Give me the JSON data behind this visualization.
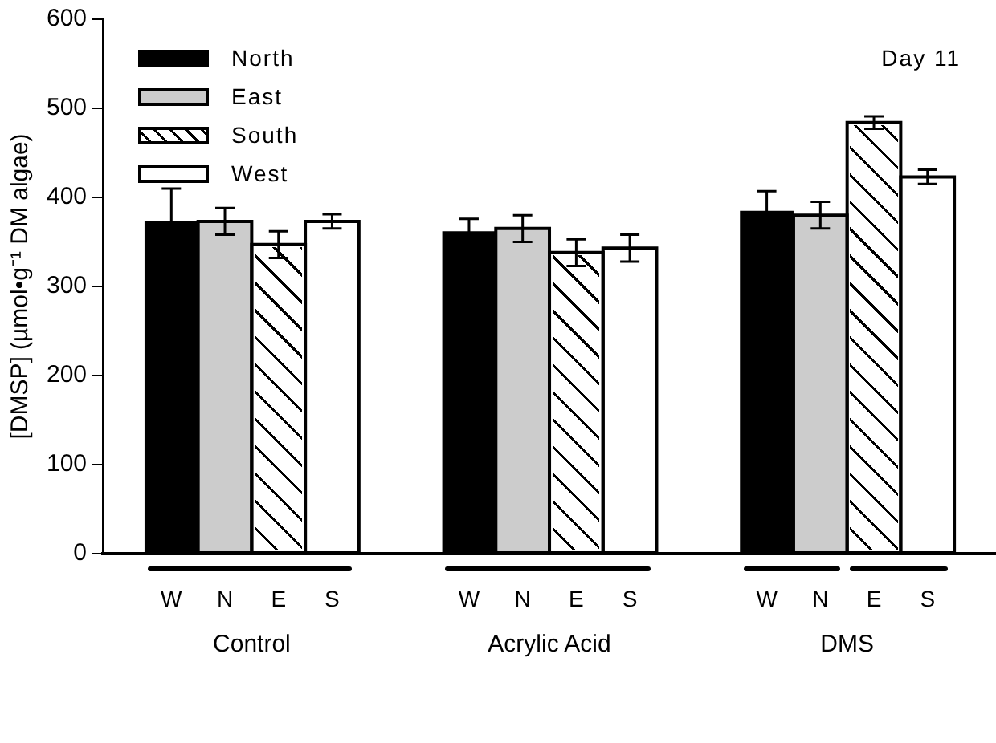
{
  "chart_data": {
    "type": "bar",
    "ylabel": "[DMSP] (µmol•g⁻¹ DM algae)",
    "categories": [
      "Control",
      "Acrylic Acid",
      "DMS"
    ],
    "series": [
      {
        "name": "North",
        "color": "#000000",
        "values": [
          373,
          362,
          385
        ],
        "errors": [
          37,
          14,
          22
        ]
      },
      {
        "name": "East",
        "color": "#cccccc",
        "values": [
          373,
          365,
          380
        ],
        "errors": [
          15,
          15,
          15
        ]
      },
      {
        "name": "South",
        "color": "#ffffff",
        "values": [
          347,
          338,
          484
        ],
        "errors": [
          15,
          15,
          7
        ]
      },
      {
        "name": "West",
        "color": "#ffffff",
        "values": [
          373,
          343,
          423
        ],
        "errors": [
          8,
          15,
          8
        ]
      }
    ],
    "ylim": [
      0,
      600
    ],
    "yticks": [
      0,
      100,
      200,
      300,
      400,
      500,
      600
    ],
    "grid": false,
    "legend": "top left",
    "annotations": [
      "Day 11",
      "W N E S",
      "W N E S",
      "W N E S"
    ]
  }
}
